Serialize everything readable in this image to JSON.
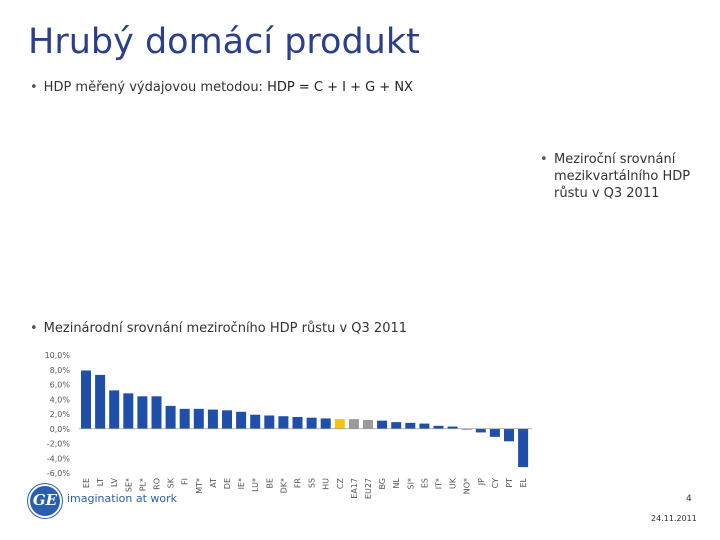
{
  "slide": {
    "title": "Hrubý domácí produkt",
    "bullet1_label": "HDP měřený výdajovou metodou:",
    "bullet1_formula": "HDP = C + I + G + NX",
    "bullet2": "Meziroční srovnání mezikvartálního HDP růstu v Q3 2011",
    "bullet3": "Mezinárodní srovnání meziročního HDP růstu v Q3 2011",
    "logo_text": "GE",
    "tagline": "imagination at work",
    "page_number": "4",
    "date": "24.11.2011"
  },
  "colors": {
    "title": "#2b3f8c",
    "bar_default": "#1f4fa8",
    "bar_cz": "#f2c412",
    "bar_aggregate": "#9a9a9a",
    "axis_text": "#555555"
  },
  "chart_data": {
    "type": "bar",
    "title": "",
    "xlabel": "",
    "ylabel": "",
    "ylim": [
      -6,
      10
    ],
    "yticks": [
      "10,0%",
      "8,0%",
      "6,0%",
      "4,0%",
      "2,0%",
      "0,0%",
      "-2,0%",
      "-4,0%",
      "-6,0%"
    ],
    "grid": false,
    "legend": "none",
    "categories": [
      "EE",
      "LT",
      "LV",
      "SE*",
      "PL*",
      "RO",
      "SK",
      "FI",
      "MT*",
      "AT",
      "DE",
      "IE*",
      "LU*",
      "BE",
      "DK*",
      "FR",
      "SS",
      "HU",
      "CZ",
      "EA17",
      "EU27",
      "BG",
      "NL",
      "SI*",
      "ES",
      "IT*",
      "UK",
      "NO*",
      "JP",
      "CY",
      "PT",
      "EL"
    ],
    "values": [
      7.9,
      7.3,
      5.2,
      4.8,
      4.4,
      4.4,
      3.1,
      2.7,
      2.7,
      2.6,
      2.5,
      2.3,
      1.9,
      1.8,
      1.7,
      1.6,
      1.5,
      1.4,
      1.3,
      1.3,
      1.2,
      1.1,
      0.9,
      0.8,
      0.7,
      0.4,
      0.3,
      -0.1,
      -0.5,
      -1.1,
      -1.7,
      -5.2
    ],
    "highlight": {
      "CZ": "#f2c412",
      "EA17": "#9a9a9a",
      "EU27": "#9a9a9a"
    }
  }
}
